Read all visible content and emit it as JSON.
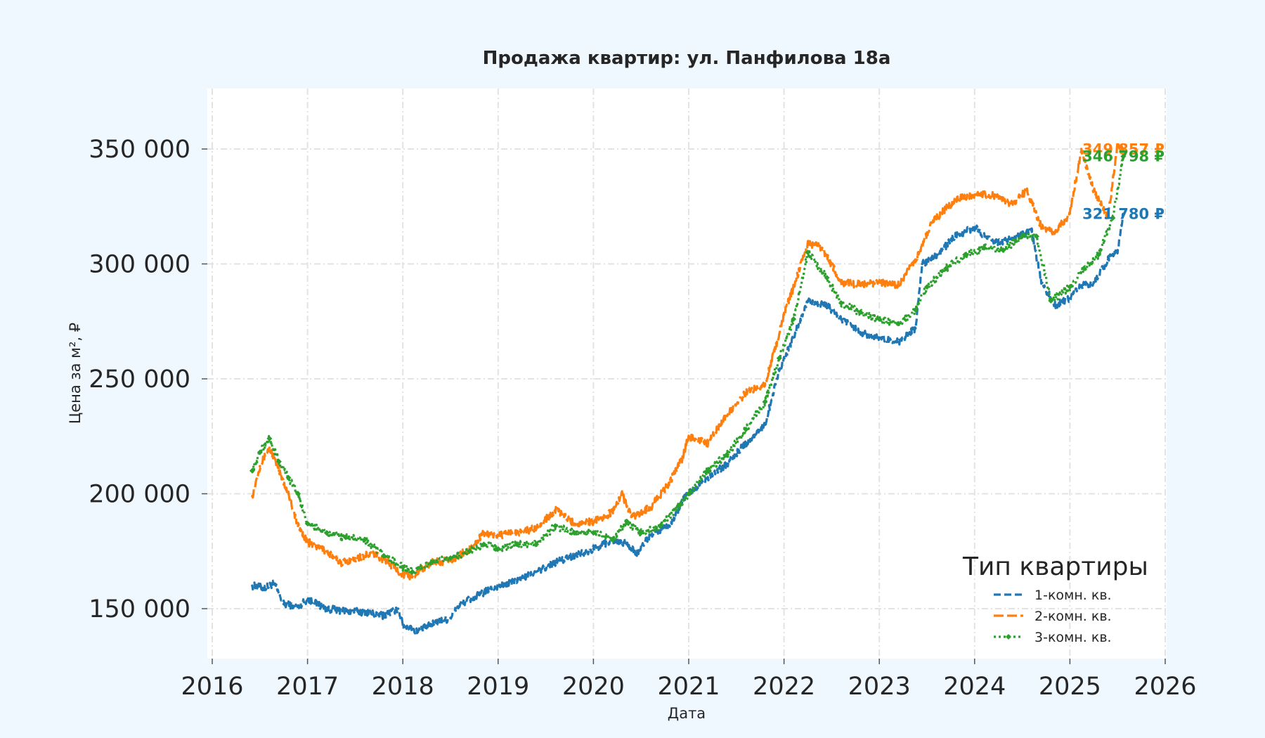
{
  "chart_data": {
    "type": "line",
    "title": "Продажа квартир: ул. Панфилова 18а",
    "xlabel": "Дата",
    "ylabel": "Цена за м², ₽",
    "xlim": [
      2016,
      2026
    ],
    "ylim": [
      130000,
      375000
    ],
    "x_ticks": [
      "2016",
      "2017",
      "2018",
      "2019",
      "2020",
      "2021",
      "2022",
      "2023",
      "2024",
      "2025",
      "2026"
    ],
    "y_ticks": [
      {
        "value": 150000,
        "label": "150 000"
      },
      {
        "value": 200000,
        "label": "200 000"
      },
      {
        "value": 250000,
        "label": "250 000"
      },
      {
        "value": 300000,
        "label": "300 000"
      },
      {
        "value": 350000,
        "label": "350 000"
      }
    ],
    "grid": true,
    "legend": {
      "title": "Тип квартиры",
      "position": "lower-right"
    },
    "series": [
      {
        "name": "1-комн. кв.",
        "color": "#1f77b4",
        "style": "dashed",
        "end_label": "321 780 ₽",
        "points": [
          [
            2016.42,
            160000
          ],
          [
            2016.55,
            159000
          ],
          [
            2016.65,
            161000
          ],
          [
            2016.75,
            152000
          ],
          [
            2016.9,
            151000
          ],
          [
            2017.0,
            154000
          ],
          [
            2017.2,
            150000
          ],
          [
            2017.4,
            149000
          ],
          [
            2017.6,
            148500
          ],
          [
            2017.8,
            147000
          ],
          [
            2017.95,
            150000
          ],
          [
            2018.0,
            143000
          ],
          [
            2018.15,
            140000
          ],
          [
            2018.35,
            144000
          ],
          [
            2018.5,
            146000
          ],
          [
            2018.6,
            152000
          ],
          [
            2018.8,
            156000
          ],
          [
            2019.0,
            160000
          ],
          [
            2019.2,
            162000
          ],
          [
            2019.4,
            166000
          ],
          [
            2019.6,
            170000
          ],
          [
            2019.8,
            173000
          ],
          [
            2020.0,
            176000
          ],
          [
            2020.2,
            180000
          ],
          [
            2020.35,
            178000
          ],
          [
            2020.45,
            174000
          ],
          [
            2020.6,
            182000
          ],
          [
            2020.8,
            186000
          ],
          [
            2020.95,
            198000
          ],
          [
            2021.2,
            207000
          ],
          [
            2021.4,
            213000
          ],
          [
            2021.6,
            222000
          ],
          [
            2021.8,
            230000
          ],
          [
            2021.95,
            254000
          ],
          [
            2022.1,
            268000
          ],
          [
            2022.25,
            284000
          ],
          [
            2022.45,
            282000
          ],
          [
            2022.6,
            276000
          ],
          [
            2022.8,
            270000
          ],
          [
            2023.0,
            268000
          ],
          [
            2023.2,
            266000
          ],
          [
            2023.38,
            272000
          ],
          [
            2023.45,
            300000
          ],
          [
            2023.6,
            304000
          ],
          [
            2023.8,
            312000
          ],
          [
            2024.0,
            316000
          ],
          [
            2024.2,
            309000
          ],
          [
            2024.4,
            311000
          ],
          [
            2024.6,
            314000
          ],
          [
            2024.7,
            292000
          ],
          [
            2024.85,
            282000
          ],
          [
            2025.0,
            285000
          ],
          [
            2025.1,
            290000
          ],
          [
            2025.25,
            292000
          ],
          [
            2025.4,
            302000
          ],
          [
            2025.5,
            306000
          ],
          [
            2025.56,
            321780
          ]
        ]
      },
      {
        "name": "2-комн. кв.",
        "color": "#ff7f0e",
        "style": "dash-marker",
        "end_label": "349 857 ₽",
        "points": [
          [
            2016.42,
            199000
          ],
          [
            2016.5,
            212000
          ],
          [
            2016.6,
            220000
          ],
          [
            2016.7,
            210000
          ],
          [
            2016.8,
            200000
          ],
          [
            2016.9,
            186000
          ],
          [
            2017.0,
            179000
          ],
          [
            2017.2,
            175000
          ],
          [
            2017.35,
            170000
          ],
          [
            2017.5,
            172000
          ],
          [
            2017.7,
            174000
          ],
          [
            2017.85,
            170000
          ],
          [
            2018.0,
            165000
          ],
          [
            2018.1,
            164000
          ],
          [
            2018.3,
            170000
          ],
          [
            2018.5,
            171000
          ],
          [
            2018.7,
            176000
          ],
          [
            2018.85,
            183000
          ],
          [
            2019.0,
            182000
          ],
          [
            2019.2,
            183000
          ],
          [
            2019.4,
            185000
          ],
          [
            2019.6,
            193000
          ],
          [
            2019.8,
            187000
          ],
          [
            2020.0,
            188000
          ],
          [
            2020.2,
            192000
          ],
          [
            2020.3,
            200000
          ],
          [
            2020.4,
            190000
          ],
          [
            2020.6,
            194000
          ],
          [
            2020.8,
            205000
          ],
          [
            2020.93,
            215000
          ],
          [
            2021.0,
            225000
          ],
          [
            2021.2,
            222000
          ],
          [
            2021.4,
            234000
          ],
          [
            2021.6,
            244000
          ],
          [
            2021.8,
            248000
          ],
          [
            2021.9,
            262000
          ],
          [
            2022.0,
            278000
          ],
          [
            2022.1,
            290000
          ],
          [
            2022.25,
            309000
          ],
          [
            2022.4,
            307000
          ],
          [
            2022.6,
            292000
          ],
          [
            2022.8,
            291000
          ],
          [
            2023.0,
            292000
          ],
          [
            2023.2,
            291000
          ],
          [
            2023.4,
            303000
          ],
          [
            2023.55,
            318000
          ],
          [
            2023.8,
            328000
          ],
          [
            2024.0,
            330000
          ],
          [
            2024.2,
            330000
          ],
          [
            2024.4,
            326000
          ],
          [
            2024.55,
            332000
          ],
          [
            2024.7,
            316000
          ],
          [
            2024.85,
            314000
          ],
          [
            2025.0,
            322000
          ],
          [
            2025.12,
            350000
          ],
          [
            2025.25,
            332000
          ],
          [
            2025.4,
            320000
          ],
          [
            2025.5,
            352000
          ],
          [
            2025.56,
            349857
          ]
        ]
      },
      {
        "name": "3-комн. кв.",
        "color": "#2ca02c",
        "style": "dotted-marker",
        "end_label": "346 798 ₽",
        "points": [
          [
            2016.42,
            210000
          ],
          [
            2016.5,
            218000
          ],
          [
            2016.6,
            224000
          ],
          [
            2016.7,
            214000
          ],
          [
            2016.8,
            207000
          ],
          [
            2016.9,
            200000
          ],
          [
            2017.0,
            187000
          ],
          [
            2017.2,
            183000
          ],
          [
            2017.4,
            181000
          ],
          [
            2017.6,
            180000
          ],
          [
            2017.8,
            173000
          ],
          [
            2018.0,
            168000
          ],
          [
            2018.1,
            166000
          ],
          [
            2018.3,
            170000
          ],
          [
            2018.5,
            172000
          ],
          [
            2018.7,
            175000
          ],
          [
            2018.85,
            178000
          ],
          [
            2019.0,
            176000
          ],
          [
            2019.2,
            178000
          ],
          [
            2019.4,
            178000
          ],
          [
            2019.6,
            186000
          ],
          [
            2019.8,
            183000
          ],
          [
            2020.0,
            183000
          ],
          [
            2020.2,
            180000
          ],
          [
            2020.35,
            188000
          ],
          [
            2020.5,
            183000
          ],
          [
            2020.7,
            186000
          ],
          [
            2020.9,
            195000
          ],
          [
            2021.0,
            200000
          ],
          [
            2021.2,
            210000
          ],
          [
            2021.4,
            217000
          ],
          [
            2021.6,
            228000
          ],
          [
            2021.8,
            240000
          ],
          [
            2021.95,
            259000
          ],
          [
            2022.1,
            276000
          ],
          [
            2022.25,
            305000
          ],
          [
            2022.45,
            294000
          ],
          [
            2022.6,
            283000
          ],
          [
            2022.8,
            279000
          ],
          [
            2023.0,
            276000
          ],
          [
            2023.2,
            274000
          ],
          [
            2023.38,
            280000
          ],
          [
            2023.5,
            290000
          ],
          [
            2023.7,
            298000
          ],
          [
            2023.9,
            304000
          ],
          [
            2024.1,
            307000
          ],
          [
            2024.3,
            306000
          ],
          [
            2024.5,
            312000
          ],
          [
            2024.65,
            312000
          ],
          [
            2024.8,
            284000
          ],
          [
            2025.0,
            290000
          ],
          [
            2025.15,
            298000
          ],
          [
            2025.3,
            304000
          ],
          [
            2025.45,
            320000
          ],
          [
            2025.56,
            346798
          ]
        ]
      }
    ]
  }
}
